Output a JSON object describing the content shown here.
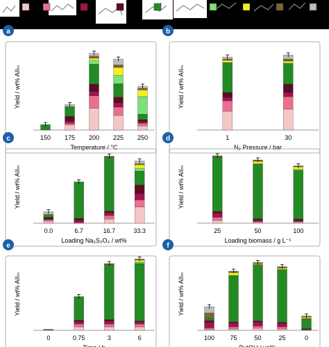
{
  "colors": {
    "s1": "#f5c6c6",
    "s2": "#ea6f91",
    "s3": "#a5124e",
    "s4": "#5c0c24",
    "s5": "#238a24",
    "s6": "#7ee07a",
    "s7": "#f4ef22",
    "s8": "#7f6333",
    "s9": "#bdbdbd"
  },
  "legend_series": [
    "s1",
    "s2",
    "s3",
    "s4",
    "s5",
    "s6",
    "s7",
    "s8",
    "s9"
  ],
  "chart_data": [
    {
      "panel": "a",
      "type": "bar",
      "stacked": true,
      "xlabel": "Temperature / °C",
      "ylabel": "Yield / wt% AIIₘ",
      "categories": [
        "150",
        "175",
        "200",
        "225",
        "250"
      ],
      "ylim": [
        0,
        20
      ],
      "stacks": [
        {
          "s5": 1.3
        },
        {
          "s1": 1.2,
          "s2": 0.4,
          "s3": 0.5,
          "s4": 1.2,
          "s5": 2.3,
          "s9": 0.5
        },
        {
          "s1": 5.2,
          "s2": 3.0,
          "s3": 1.0,
          "s4": 1.8,
          "s5": 4.8,
          "s6": 0.9,
          "s7": 0.5,
          "s8": 0.5,
          "s9": 0.7
        },
        {
          "s1": 3.5,
          "s2": 2.0,
          "s3": 1.0,
          "s4": 1.4,
          "s5": 3.2,
          "s6": 2.0,
          "s7": 1.9,
          "s8": 0.6,
          "s9": 1.4
        },
        {
          "s1": 1.0,
          "s2": 0.6,
          "s3": 0.4,
          "s4": 0.5,
          "s5": 1.3,
          "s6": 4.2,
          "s7": 1.6,
          "s8": 0.4,
          "s9": 0.5
        }
      ]
    },
    {
      "panel": "b",
      "type": "bar",
      "stacked": true,
      "xlabel": "N₂ Pressure / bar",
      "ylabel": "Yield / wt% AIIₘ",
      "categories": [
        "1",
        "30"
      ],
      "ylim": [
        0,
        20
      ],
      "stacks": [
        {
          "s1": 4.5,
          "s2": 2.5,
          "s3": 0.8,
          "s4": 1.2,
          "s5": 7.2,
          "s7": 0.5,
          "s8": 0.3,
          "s9": 0.5
        },
        {
          "s1": 5.0,
          "s2": 3.0,
          "s3": 1.0,
          "s4": 2.0,
          "s5": 5.0,
          "s7": 0.5,
          "s8": 0.5,
          "s9": 1.0
        }
      ]
    },
    {
      "panel": "c",
      "type": "bar",
      "stacked": true,
      "xlabel": "Loading Na₂S₂O₄ / wt%",
      "ylabel": "Yield / wt% AIIₘ",
      "categories": [
        "0.0",
        "6.7",
        "16.7",
        "33.3"
      ],
      "ylim": [
        0,
        20
      ],
      "stacks": [
        {
          "s1": 0.6,
          "s2": 0.4,
          "s3": 0.2,
          "s4": 0.5,
          "s5": 0.8,
          "s9": 0.8
        },
        {
          "s2": 0.2,
          "s3": 0.6,
          "s4": 0.6,
          "s5": 10.5
        },
        {
          "s1": 1.2,
          "s2": 1.0,
          "s3": 0.8,
          "s4": 0.5,
          "s5": 15.5,
          "s8": 0.3
        },
        {
          "s1": 4.7,
          "s2": 2.0,
          "s3": 1.8,
          "s4": 2.5,
          "s5": 4.0,
          "s6": 0.8,
          "s7": 1.0,
          "s8": 0.3,
          "s9": 0.8
        }
      ]
    },
    {
      "panel": "d",
      "type": "bar",
      "stacked": true,
      "xlabel": "Loading biomass / g L⁻¹",
      "ylabel": "Yield / wt% AIIₘ",
      "categories": [
        "25",
        "50",
        "100"
      ],
      "ylim": [
        0,
        20
      ],
      "stacks": [
        {
          "s1": 0.8,
          "s2": 0.9,
          "s3": 1.2,
          "s4": 0.5,
          "s5": 15.6,
          "s8": 0.4
        },
        {
          "s1": 0.3,
          "s2": 0.2,
          "s3": 0.4,
          "s4": 0.4,
          "s5": 15.8,
          "s7": 0.7,
          "s8": 0.4
        },
        {
          "s1": 0.3,
          "s2": 0.2,
          "s3": 0.3,
          "s4": 0.4,
          "s5": 14.0,
          "s6": 0.3,
          "s7": 0.7,
          "s8": 0.3
        }
      ]
    },
    {
      "panel": "e",
      "type": "bar",
      "stacked": true,
      "xlabel": "Time / h",
      "ylabel": "Yield / wt% AIIₘ",
      "categories": [
        "0",
        "0.75",
        "3",
        "6"
      ],
      "ylim": [
        0,
        20
      ],
      "stacks": [
        {
          "s5": 0.3
        },
        {
          "s1": 1.0,
          "s2": 0.8,
          "s3": 0.7,
          "s4": 0.4,
          "s5": 6.8
        },
        {
          "s1": 1.0,
          "s2": 0.8,
          "s3": 0.8,
          "s4": 0.5,
          "s5": 15.8,
          "s8": 0.3
        },
        {
          "s1": 1.0,
          "s2": 0.8,
          "s3": 0.6,
          "s4": 0.3,
          "s5": 16.5,
          "s6": 0.4,
          "s7": 0.6,
          "s8": 0.3
        }
      ]
    },
    {
      "panel": "f",
      "type": "bar",
      "stacked": true,
      "xlabel": "ButOH / vol%",
      "ylabel": "Yield / wt% AIIₘ",
      "categories": [
        "100",
        "75",
        "50",
        "25",
        "0"
      ],
      "ylim": [
        0,
        20
      ],
      "stacks": [
        {
          "s1": 0.3,
          "s2": 0.4,
          "s3": 1.6,
          "s4": 0.5,
          "s5": 0.6,
          "s8": 1.6,
          "s9": 1.8
        },
        {
          "s1": 0.4,
          "s2": 0.6,
          "s3": 1.1,
          "s4": 0.3,
          "s5": 13.4,
          "s7": 0.8,
          "s8": 0.4
        },
        {
          "s1": 0.6,
          "s2": 0.6,
          "s3": 1.1,
          "s4": 0.4,
          "s5": 16.2,
          "s7": 0.3,
          "s8": 0.3
        },
        {
          "s1": 0.4,
          "s2": 0.6,
          "s3": 1.0,
          "s4": 0.3,
          "s5": 15.2,
          "s7": 0.4,
          "s8": 0.4
        },
        {
          "s2": 0.1,
          "s3": 0.3,
          "s4": 0.1,
          "s5": 2.9,
          "s7": 0.4,
          "s8": 0.3
        }
      ]
    }
  ]
}
